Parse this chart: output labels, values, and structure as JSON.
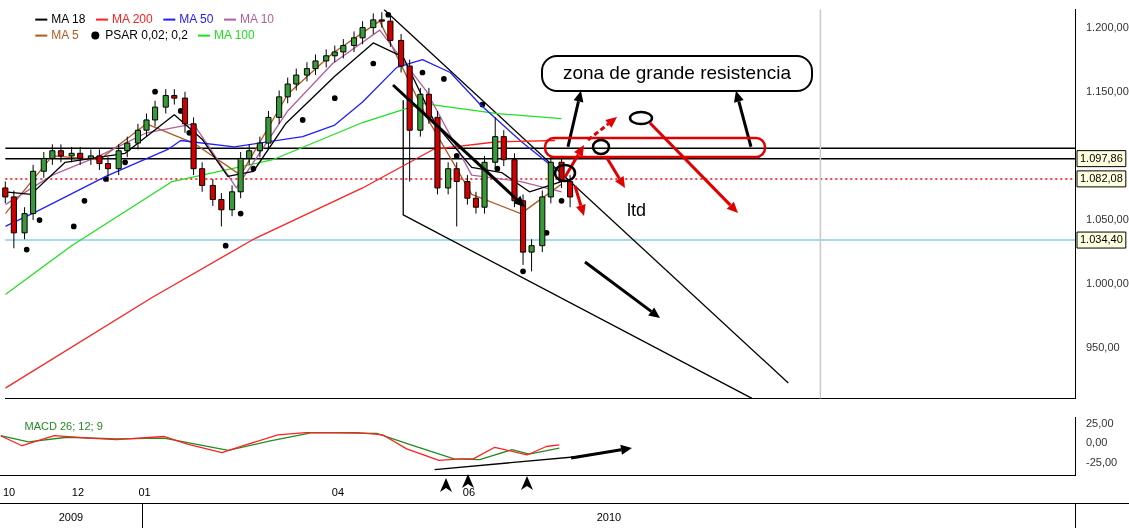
{
  "chart_data": [
    {
      "type": "candlestick",
      "legend": "top left",
      "tick_labels": "y",
      "xlim": [
        "2009-10-26",
        "2011-03-10"
      ],
      "ylim": [
        911,
        1214
      ],
      "yticks": [
        {
          "value": 950,
          "label": "950,00"
        },
        {
          "value": 1000,
          "label": "1.000,00"
        },
        {
          "value": 1050,
          "label": "1.050,00"
        },
        {
          "value": 1150,
          "label": "1.150,00"
        },
        {
          "value": 1200,
          "label": "1.200,00"
        }
      ],
      "x": [
        "2009-10-26",
        "2009-10-30",
        "2009-11-04",
        "2009-11-08",
        "2009-11-13",
        "2009-11-17",
        "2009-11-21",
        "2009-11-26",
        "2009-11-30",
        "2009-12-05",
        "2009-12-09",
        "2009-12-13",
        "2009-12-18",
        "2009-12-22",
        "2009-12-27",
        "2009-12-31",
        "2010-01-04",
        "2010-01-09",
        "2010-01-13",
        "2010-01-18",
        "2010-01-22",
        "2010-01-26",
        "2010-01-31",
        "2010-02-04",
        "2010-02-09",
        "2010-02-13",
        "2010-02-17",
        "2010-02-22",
        "2010-02-26",
        "2010-03-03",
        "2010-03-07",
        "2010-03-11",
        "2010-03-16",
        "2010-03-20",
        "2010-03-25",
        "2010-03-29",
        "2010-04-02",
        "2010-04-07",
        "2010-04-11",
        "2010-04-16",
        "2010-04-20",
        "2010-04-24",
        "2010-04-29",
        "2010-05-03",
        "2010-05-08",
        "2010-05-12",
        "2010-05-16",
        "2010-05-21",
        "2010-05-25",
        "2010-05-30",
        "2010-06-03",
        "2010-06-07",
        "2010-06-12",
        "2010-06-16",
        "2010-06-21",
        "2010-06-25",
        "2010-06-29",
        "2010-07-04",
        "2010-07-08",
        "2010-07-13",
        "2010-07-17"
      ],
      "ohlc": [
        [
          1075,
          1080,
          1063,
          1068
        ],
        [
          1068,
          1073,
          1028,
          1040
        ],
        [
          1040,
          1060,
          1035,
          1055
        ],
        [
          1055,
          1093,
          1050,
          1088
        ],
        [
          1088,
          1103,
          1083,
          1098
        ],
        [
          1098,
          1109,
          1093,
          1104
        ],
        [
          1104,
          1109,
          1095,
          1100
        ],
        [
          1100,
          1107,
          1095,
          1102
        ],
        [
          1102,
          1107,
          1093,
          1098
        ],
        [
          1098,
          1105,
          1093,
          1100
        ],
        [
          1100,
          1105,
          1089,
          1094
        ],
        [
          1094,
          1099,
          1080,
          1090
        ],
        [
          1090,
          1109,
          1085,
          1104
        ],
        [
          1104,
          1115,
          1099,
          1110
        ],
        [
          1110,
          1125,
          1105,
          1120
        ],
        [
          1120,
          1133,
          1115,
          1128
        ],
        [
          1128,
          1143,
          1123,
          1138
        ],
        [
          1138,
          1152,
          1133,
          1147
        ],
        [
          1147,
          1152,
          1140,
          1145
        ],
        [
          1145,
          1150,
          1118,
          1125
        ],
        [
          1125,
          1130,
          1085,
          1090
        ],
        [
          1090,
          1095,
          1072,
          1077
        ],
        [
          1077,
          1082,
          1061,
          1066
        ],
        [
          1066,
          1071,
          1045,
          1058
        ],
        [
          1058,
          1077,
          1053,
          1072
        ],
        [
          1072,
          1103,
          1067,
          1098
        ],
        [
          1098,
          1109,
          1093,
          1104
        ],
        [
          1104,
          1115,
          1099,
          1110
        ],
        [
          1110,
          1135,
          1105,
          1130
        ],
        [
          1130,
          1151,
          1125,
          1146
        ],
        [
          1146,
          1161,
          1141,
          1156
        ],
        [
          1156,
          1168,
          1151,
          1163
        ],
        [
          1163,
          1173,
          1158,
          1168
        ],
        [
          1168,
          1179,
          1163,
          1174
        ],
        [
          1174,
          1183,
          1169,
          1178
        ],
        [
          1178,
          1186,
          1173,
          1181
        ],
        [
          1181,
          1191,
          1176,
          1186
        ],
        [
          1186,
          1197,
          1181,
          1192
        ],
        [
          1192,
          1205,
          1187,
          1200
        ],
        [
          1200,
          1211,
          1195,
          1206
        ],
        [
          1206,
          1212,
          1200,
          1205
        ],
        [
          1205,
          1210,
          1185,
          1190
        ],
        [
          1190,
          1195,
          1165,
          1170
        ],
        [
          1170,
          1175,
          1080,
          1120
        ],
        [
          1120,
          1153,
          1115,
          1148
        ],
        [
          1148,
          1153,
          1125,
          1130
        ],
        [
          1130,
          1135,
          1070,
          1075
        ],
        [
          1075,
          1095,
          1070,
          1090
        ],
        [
          1090,
          1095,
          1045,
          1080
        ],
        [
          1080,
          1085,
          1062,
          1067
        ],
        [
          1067,
          1072,
          1055,
          1060
        ],
        [
          1060,
          1100,
          1055,
          1095
        ],
        [
          1095,
          1130,
          1090,
          1115
        ],
        [
          1115,
          1120,
          1092,
          1097
        ],
        [
          1097,
          1102,
          1060,
          1065
        ],
        [
          1065,
          1070,
          1015,
          1025
        ],
        [
          1025,
          1035,
          1010,
          1030
        ],
        [
          1030,
          1073,
          1025,
          1068
        ],
        [
          1068,
          1100,
          1063,
          1095
        ],
        [
          1095,
          1100,
          1075,
          1080
        ],
        [
          1080,
          1085,
          1060,
          1068
        ]
      ],
      "series": [
        {
          "name": "MA 18",
          "type": "line",
          "color": "#000000",
          "x": [
            "2009-10-26",
            "2009-11-07",
            "2009-11-23",
            "2009-12-21",
            "2010-01-13",
            "2010-01-26",
            "2010-02-07",
            "2010-02-19",
            "2010-03-06",
            "2010-03-29",
            "2010-04-16",
            "2010-04-30",
            "2010-05-15",
            "2010-06-01",
            "2010-06-15",
            "2010-06-28",
            "2010-07-13"
          ],
          "values": [
            1072,
            1070,
            1095,
            1102,
            1132,
            1113,
            1084,
            1088,
            1125,
            1162,
            1188,
            1177,
            1125,
            1091,
            1087,
            1072,
            1080
          ]
        },
        {
          "name": "MA 200",
          "type": "line",
          "color": "#ff2020",
          "x": [
            "2009-10-26",
            "2010-01-03",
            "2010-02-19",
            "2010-04-11",
            "2010-05-14",
            "2010-06-13",
            "2010-07-10"
          ],
          "values": [
            919,
            990,
            1035,
            1075,
            1105,
            1111,
            1112
          ]
        },
        {
          "name": "MA 50",
          "type": "line",
          "color": "#2020ff",
          "x": [
            "2009-10-26",
            "2009-11-10",
            "2009-12-12",
            "2009-12-27",
            "2010-01-10",
            "2010-01-16",
            "2010-02-10",
            "2010-03-14",
            "2010-03-29",
            "2010-04-11",
            "2010-04-27",
            "2010-05-09",
            "2010-05-22",
            "2010-06-05",
            "2010-06-25",
            "2010-07-10"
          ],
          "values": [
            1045,
            1057,
            1084,
            1095,
            1105,
            1112,
            1107,
            1115,
            1124,
            1142,
            1169,
            1175,
            1165,
            1140,
            1110,
            1090
          ]
        },
        {
          "name": "MA 10",
          "type": "line",
          "color": "#b060a0",
          "x": [
            "2009-10-26",
            "2009-11-17",
            "2009-12-09",
            "2009-12-31",
            "2010-01-22",
            "2010-02-11",
            "2010-03-07",
            "2010-03-28",
            "2010-04-19",
            "2010-05-11",
            "2010-06-01",
            "2010-06-24",
            "2010-07-13"
          ],
          "values": [
            1062,
            1085,
            1100,
            1118,
            1125,
            1075,
            1135,
            1172,
            1198,
            1150,
            1085,
            1080,
            1072
          ]
        },
        {
          "name": "MA 5",
          "type": "line",
          "color": "#b05a20",
          "x": [
            "2009-10-26",
            "2009-11-17",
            "2009-12-09",
            "2009-12-31",
            "2010-01-22",
            "2010-02-13",
            "2010-03-07",
            "2010-03-28",
            "2010-04-19",
            "2010-05-11",
            "2010-06-01",
            "2010-06-24",
            "2010-07-13"
          ],
          "values": [
            1055,
            1100,
            1097,
            1125,
            1110,
            1085,
            1148,
            1180,
            1205,
            1130,
            1070,
            1055,
            1078
          ]
        },
        {
          "name": "PSAR 0,02; 0,2",
          "type": "scatter",
          "marker": "circle",
          "color": "#000000",
          "x": [
            "2009-11-05",
            "2009-11-11",
            "2009-11-27",
            "2009-12-02",
            "2009-12-12",
            "2009-12-21",
            "2010-01-04",
            "2010-01-16",
            "2010-01-20",
            "2010-02-06",
            "2010-02-13",
            "2010-02-19",
            "2010-03-14",
            "2010-03-29",
            "2010-04-16",
            "2010-04-23",
            "2010-05-09",
            "2010-05-19",
            "2010-05-25",
            "2010-06-06",
            "2010-06-13",
            "2010-06-25",
            "2010-07-06",
            "2010-07-13"
          ],
          "values": [
            1027,
            1050,
            1045,
            1065,
            1082,
            1095,
            1150,
            1135,
            1118,
            1030,
            1055,
            1090,
            1128,
            1145,
            1172,
            1210,
            1165,
            1160,
            1100,
            1140,
            1090,
            1010,
            1040,
            1065
          ]
        },
        {
          "name": "MA 100",
          "type": "line",
          "color": "#20e020",
          "x": [
            "2009-10-26",
            "2009-11-26",
            "2010-01-12",
            "2010-02-28",
            "2010-04-11",
            "2010-05-09",
            "2010-06-13",
            "2010-07-13"
          ],
          "values": [
            992,
            1030,
            1080,
            1097,
            1126,
            1141,
            1133,
            1129
          ]
        },
        {
          "type": "line",
          "color": "#000000",
          "x": [
            "2010-04-21",
            "2010-10-27"
          ],
          "values": [
            1214,
            923
          ]
        },
        {
          "type": "line",
          "color": "#000000",
          "x": [
            "2010-04-30",
            "2010-04-30",
            "2010-10-10"
          ],
          "values": [
            1143,
            1054,
            911
          ]
        }
      ],
      "ref_lines": [
        {
          "axis": "y",
          "value": 1106,
          "color": "#000000"
        },
        {
          "axis": "y",
          "value": 1097.86,
          "label": "1.097,86",
          "color": "#000000"
        },
        {
          "axis": "y",
          "value": 1082.08,
          "label": "1.082,08",
          "color": "#ff0000",
          "line_style": "dotted"
        },
        {
          "axis": "y",
          "value": 1034.4,
          "label": "1.034,40",
          "color": "#87ceeb"
        },
        {
          "axis": "x",
          "value": "2010-11-11",
          "color": "#c8c8c8"
        }
      ],
      "annotations": [
        {
          "text": "zona de grande resistencia",
          "x": "2010-07-16",
          "y": 1104
        },
        "ltd"
      ]
    },
    {
      "type": "line",
      "title": "MACD 26; 12; 9",
      "xlim": [
        "2009-10-26",
        "2011-03-10"
      ],
      "ylim": [
        -42,
        33.5
      ],
      "xticks": [
        {
          "value": "2009-10-30",
          "label": "10"
        },
        {
          "value": "2009-12-01",
          "label": "12"
        },
        {
          "value": "2010-01-01",
          "label": "01"
        },
        {
          "value": "2010-04-01",
          "label": "04"
        },
        {
          "value": "2010-06-01",
          "label": "06"
        }
      ],
      "yticks": [
        {
          "value": 25,
          "label": "25,00"
        },
        {
          "value": 0,
          "label": "0,00"
        },
        {
          "value": -25,
          "label": "-25,00"
        }
      ],
      "series": [
        {
          "color": "#ff2020",
          "x": [
            "2009-10-26",
            "2009-11-05",
            "2009-11-20",
            "2009-12-06",
            "2009-12-19",
            "2010-01-10",
            "2010-01-21",
            "2010-02-06",
            "2010-02-16",
            "2010-03-04",
            "2010-03-17",
            "2010-04-10",
            "2010-04-22",
            "2010-05-03",
            "2010-05-18",
            "2010-05-28",
            "2010-06-03",
            "2010-06-13",
            "2010-06-28",
            "2010-07-07",
            "2010-07-13"
          ],
          "values": [
            10,
            -3,
            10,
            7,
            5,
            9,
            -1,
            -12,
            -3,
            11,
            14,
            14,
            11,
            -7,
            -22,
            -20,
            -20,
            -5,
            -15,
            -4,
            -2
          ]
        },
        {
          "color": "#228b22",
          "x": [
            "2009-10-26",
            "2009-11-08",
            "2009-11-26",
            "2009-12-19",
            "2010-01-10",
            "2010-01-23",
            "2010-02-09",
            "2010-02-28",
            "2010-03-20",
            "2010-04-19",
            "2010-05-05",
            "2010-05-25",
            "2010-06-06",
            "2010-06-21",
            "2010-06-29",
            "2010-07-13"
          ],
          "values": [
            10,
            2,
            8,
            6,
            7,
            0,
            -9,
            3,
            14,
            13,
            -2,
            -20,
            -21,
            -8,
            -14,
            -6
          ]
        },
        {
          "color": "#000000",
          "x": [
            "2010-05-16",
            "2010-07-26"
          ],
          "values": [
            -34,
            -16
          ]
        }
      ],
      "annotations": [
        "2009",
        "2010"
      ]
    }
  ]
}
